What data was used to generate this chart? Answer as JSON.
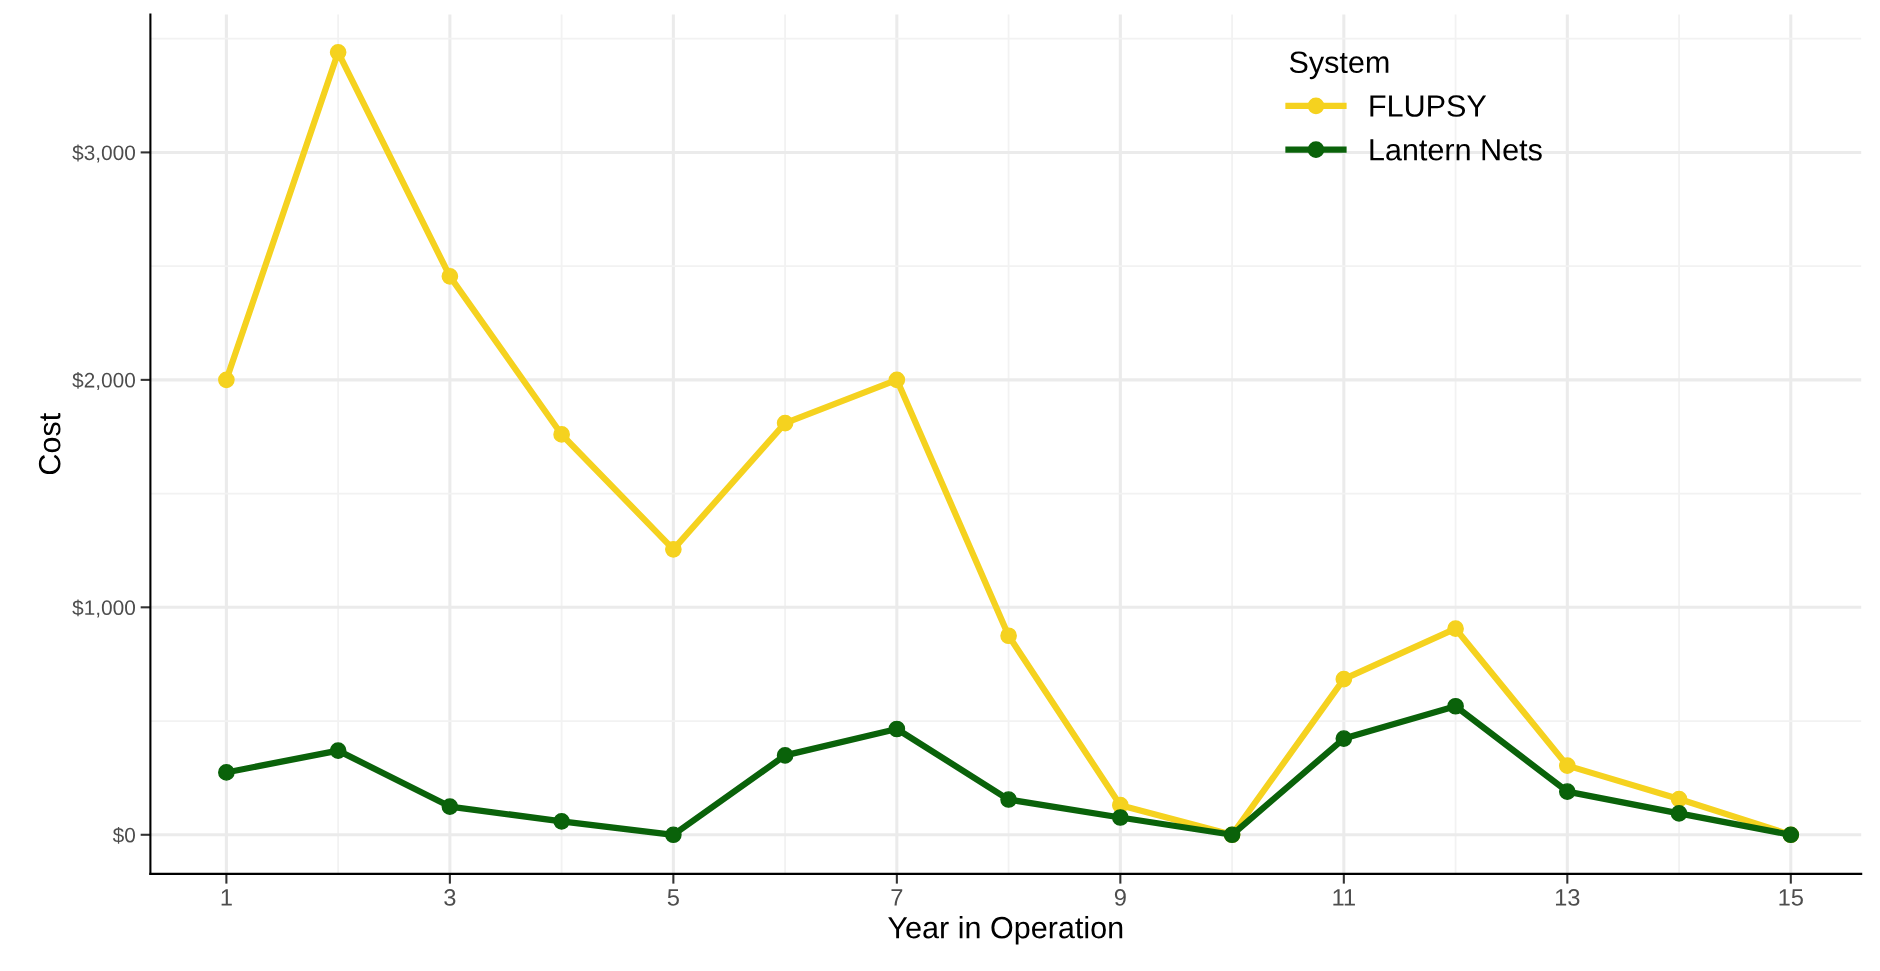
{
  "chart_data": {
    "type": "line",
    "xlabel": "Year in Operation",
    "ylabel": "Cost",
    "legend_title": "System",
    "legend": "top right",
    "grid": true,
    "marker": "circle",
    "line_style": "solid",
    "x": [
      1,
      2,
      3,
      4,
      5,
      6,
      7,
      8,
      9,
      10,
      11,
      12,
      13,
      14,
      15
    ],
    "xlim": [
      0.32,
      15.63
    ],
    "ylim": [
      -172,
      3606
    ],
    "xticks": [
      1,
      {
        "value": 2,
        "label": null
      },
      3,
      {
        "value": 4,
        "label": null
      },
      5,
      {
        "value": 6,
        "label": null
      },
      7,
      {
        "value": 8,
        "label": null
      },
      9,
      {
        "value": 10,
        "label": null
      },
      11,
      {
        "value": 12,
        "label": null
      },
      13,
      {
        "value": 14,
        "label": null
      },
      15
    ],
    "yticks": [
      {
        "value": 0,
        "label": "$0"
      },
      {
        "value": 500,
        "label": null
      },
      {
        "value": 1000,
        "label": "$1,000"
      },
      {
        "value": 1500,
        "label": null
      },
      {
        "value": 2000,
        "label": "$2,000"
      },
      {
        "value": 2500,
        "label": null
      },
      {
        "value": 3000,
        "label": "$3,000"
      },
      {
        "value": 3500,
        "label": null
      }
    ],
    "series": [
      {
        "name": "FLUPSY",
        "color": "#f5d21f",
        "values": [
          2000,
          3440,
          2455,
          1760,
          1255,
          1810,
          2000,
          875,
          130,
          0,
          684,
          906,
          304,
          157,
          0
        ]
      },
      {
        "name": "Lantern Nets",
        "color": "#0a620a",
        "values": [
          274,
          370,
          124,
          59,
          0,
          349,
          465,
          155,
          76,
          0,
          423,
          565,
          190,
          94,
          0
        ]
      }
    ]
  }
}
